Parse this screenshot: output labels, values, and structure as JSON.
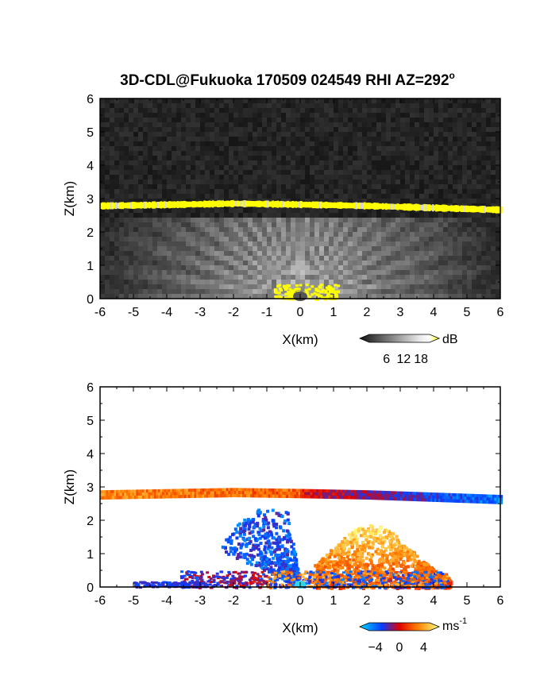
{
  "title": "3D-CDL@Fukuoka 170509 024549 RHI AZ=292",
  "title_superscript": "o",
  "colors": {
    "panel_bg": "#1b1b1b",
    "echo_layer": "#ffff00",
    "frame": "#000000",
    "velocity_scale": [
      "#00c8ff",
      "#0044ff",
      "#ff2a00",
      "#ff8c00",
      "#ffff66"
    ]
  },
  "chart_data": [
    {
      "type": "heatmap",
      "name": "reflectivity",
      "xlabel": "X(km)",
      "ylabel": "Z(km)",
      "xlim": [
        -6,
        6
      ],
      "ylim": [
        0,
        6
      ],
      "x_ticks": [
        "-6",
        "-5",
        "-4",
        "-3",
        "-2",
        "-1",
        "0",
        "1",
        "2",
        "3",
        "4",
        "5",
        "6"
      ],
      "y_ticks": [
        "0",
        "1",
        "2",
        "3",
        "4",
        "5",
        "6"
      ],
      "features": {
        "elevated_layer_height_km_at_x": [
          [
            -6,
            2.78
          ],
          [
            -2,
            2.85
          ],
          [
            0,
            2.82
          ],
          [
            2,
            2.78
          ],
          [
            6,
            2.66
          ]
        ],
        "near_surface_echo_x_range_km": [
          -0.8,
          1.1
        ],
        "beam_fan_top_km": 2.3
      },
      "colorbar": {
        "unit": "dB",
        "tick_labels": [
          "6",
          "12",
          "18"
        ],
        "min": 0,
        "max": 21
      }
    },
    {
      "type": "heatmap",
      "name": "doppler_velocity",
      "xlabel": "X(km)",
      "ylabel": "Z(km)",
      "xlim": [
        -6,
        6
      ],
      "ylim": [
        0,
        6
      ],
      "x_ticks": [
        "-6",
        "-5",
        "-4",
        "-3",
        "-2",
        "-1",
        "0",
        "1",
        "2",
        "3",
        "4",
        "5",
        "6"
      ],
      "y_ticks": [
        "0",
        "1",
        "2",
        "3",
        "4",
        "5",
        "6"
      ],
      "features": {
        "elevated_layer_x_km": [
          -6,
          6
        ],
        "elevated_layer_z_km": [
          2.55,
          2.95
        ],
        "receding_region_x_km": [
          0.4,
          4.5
        ],
        "approaching_region_x_km": [
          -2.5,
          0.3
        ]
      },
      "colorbar": {
        "unit": "ms",
        "unit_superscript": "-1",
        "tick_labels": [
          "-4",
          "0",
          "4"
        ],
        "min": -5,
        "max": 5
      }
    }
  ]
}
